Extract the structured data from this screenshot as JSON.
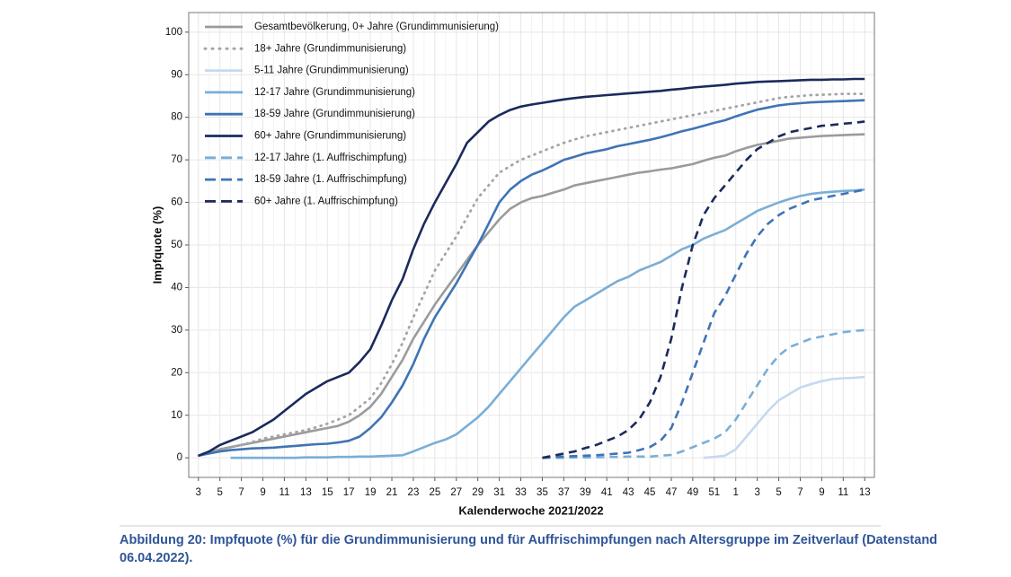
{
  "chart_data": {
    "type": "line",
    "x_label": "Kalenderwoche 2021/2022",
    "y_label": "Impfquote (%)",
    "caption": "Abbildung 20: Impfquote (%) für die Grundimmunisierung und für Auffrischimpfungen nach Altersgruppe im Zeitverlauf (Datenstand 06.04.2022).",
    "categories": [
      "3",
      null,
      "5",
      null,
      "7",
      null,
      "9",
      null,
      "11",
      null,
      "13",
      null,
      "15",
      null,
      "17",
      null,
      "19",
      null,
      "21",
      null,
      "23",
      null,
      "25",
      null,
      "27",
      null,
      "29",
      null,
      "31",
      null,
      "33",
      null,
      "35",
      null,
      "37",
      null,
      "39",
      null,
      "41",
      null,
      "43",
      null,
      "45",
      null,
      "47",
      null,
      "49",
      null,
      "51",
      null,
      "1",
      null,
      "3",
      null,
      "5",
      null,
      "7",
      null,
      "9",
      null,
      "11",
      null,
      "13"
    ],
    "ylim": [
      -4.6,
      104.6
    ],
    "yticks": [
      0,
      10,
      20,
      30,
      40,
      50,
      60,
      70,
      80,
      90,
      100
    ],
    "grid": true,
    "legend": "top-left",
    "series": [
      {
        "name": "Gesamtbevölkerung, 0+ Jahre (Grundimmunisierung)",
        "color": "#9b9b9b",
        "dash": "solid",
        "values": [
          0.5,
          1.2,
          2,
          2.5,
          3,
          3.5,
          4,
          4.5,
          5,
          5.5,
          6,
          6.5,
          7,
          7.5,
          8.5,
          10,
          12,
          15,
          19,
          23,
          28,
          32,
          36,
          39.5,
          43,
          46.5,
          50,
          53,
          56,
          58.5,
          60,
          61,
          61.5,
          62.3,
          63,
          64,
          64.5,
          65,
          65.5,
          66,
          66.5,
          67,
          67.3,
          67.7,
          68,
          68.5,
          69,
          69.8,
          70.5,
          71,
          72,
          72.8,
          73.5,
          74,
          74.5,
          75,
          75.2,
          75.4,
          75.6,
          75.7,
          75.8,
          75.9,
          76
        ]
      },
      {
        "name": "18+ Jahre (Grundimmunisierung)",
        "color": "#a5a5a5",
        "dash": "dot",
        "values": [
          0.5,
          1.2,
          2,
          2.5,
          3,
          3.7,
          4.5,
          5,
          5.5,
          6,
          6.5,
          7.2,
          8,
          9,
          10,
          12,
          14,
          17.5,
          22,
          27,
          33,
          38.5,
          44,
          48,
          52,
          56.5,
          61,
          64,
          67,
          68.5,
          70,
          71,
          72,
          73,
          74,
          74.8,
          75.5,
          76,
          76.5,
          77,
          77.5,
          78,
          78.5,
          79,
          79.5,
          80,
          80.5,
          81,
          81.5,
          82,
          82.5,
          83,
          83.5,
          84,
          84.5,
          84.8,
          85,
          85.2,
          85.3,
          85.4,
          85.5,
          85.5,
          85.5
        ]
      },
      {
        "name": "5-11 Jahre (Grundimmunisierung)",
        "color": "#c6d9ef",
        "dash": "solid",
        "values": [
          null,
          null,
          null,
          null,
          null,
          null,
          null,
          null,
          null,
          null,
          null,
          null,
          null,
          null,
          null,
          null,
          null,
          null,
          null,
          null,
          null,
          null,
          null,
          null,
          null,
          null,
          null,
          null,
          null,
          null,
          null,
          null,
          null,
          null,
          null,
          null,
          null,
          null,
          null,
          null,
          null,
          null,
          null,
          null,
          null,
          null,
          null,
          0,
          0.2,
          0.5,
          2,
          5,
          8,
          11,
          13.5,
          15,
          16.5,
          17.3,
          18,
          18.5,
          18.7,
          18.8,
          19
        ]
      },
      {
        "name": "12-17 Jahre (Grundimmunisierung)",
        "color": "#7aaed6",
        "dash": "solid",
        "values": [
          null,
          null,
          null,
          0,
          0,
          0,
          0,
          0,
          0,
          0,
          0.1,
          0.1,
          0.1,
          0.2,
          0.2,
          0.3,
          0.3,
          0.4,
          0.5,
          0.6,
          1.5,
          2.5,
          3.5,
          4.3,
          5.5,
          7.5,
          9.5,
          12,
          15,
          18,
          21,
          24,
          27,
          30,
          33,
          35.5,
          37,
          38.5,
          40,
          41.5,
          42.5,
          44,
          45,
          46,
          47.5,
          49,
          50,
          51.5,
          52.5,
          53.5,
          55,
          56.5,
          58,
          59,
          60,
          60.8,
          61.5,
          62,
          62.3,
          62.5,
          62.7,
          62.8,
          63
        ]
      },
      {
        "name": "18-59 Jahre (Grundimmunisierung)",
        "color": "#3f74b5",
        "dash": "solid",
        "values": [
          0.5,
          1,
          1.5,
          1.8,
          2,
          2.2,
          2.3,
          2.4,
          2.6,
          2.8,
          3,
          3.2,
          3.3,
          3.6,
          4,
          5,
          7,
          9.5,
          13,
          17,
          22,
          28,
          33,
          37,
          41,
          45.5,
          50,
          55,
          60,
          63,
          65,
          66.5,
          67.5,
          68.7,
          70,
          70.7,
          71.5,
          72,
          72.5,
          73.2,
          73.7,
          74.2,
          74.7,
          75.3,
          76,
          76.7,
          77.3,
          78,
          78.7,
          79.3,
          80.2,
          81,
          81.8,
          82.3,
          82.8,
          83.1,
          83.3,
          83.5,
          83.6,
          83.7,
          83.8,
          83.9,
          84
        ]
      },
      {
        "name": "60+ Jahre (Grundimmunisierung)",
        "color": "#1b2a5c",
        "dash": "solid",
        "values": [
          0.5,
          1.5,
          3,
          4,
          5,
          6,
          7.5,
          9,
          11,
          13,
          15,
          16.5,
          18,
          19,
          20,
          22.5,
          25.5,
          31,
          37,
          42,
          49,
          55,
          60,
          64.5,
          69,
          74,
          76.5,
          79,
          80.5,
          81.7,
          82.5,
          83,
          83.4,
          83.8,
          84.2,
          84.5,
          84.8,
          85,
          85.2,
          85.4,
          85.6,
          85.8,
          86,
          86.2,
          86.5,
          86.7,
          87,
          87.2,
          87.4,
          87.6,
          87.9,
          88.1,
          88.3,
          88.4,
          88.5,
          88.6,
          88.7,
          88.8,
          88.8,
          88.9,
          88.9,
          89,
          89
        ]
      },
      {
        "name": "12-17 Jahre (1. Auffrischimpfung)",
        "color": "#7aaed6",
        "dash": "dash",
        "values": [
          null,
          null,
          null,
          null,
          null,
          null,
          null,
          null,
          null,
          null,
          null,
          null,
          null,
          null,
          null,
          null,
          null,
          null,
          null,
          null,
          null,
          null,
          null,
          null,
          null,
          null,
          null,
          null,
          null,
          null,
          null,
          null,
          0,
          0,
          0,
          0.1,
          0.1,
          0.1,
          0.2,
          0.2,
          0.3,
          0.3,
          0.3,
          0.5,
          0.7,
          1.5,
          2.5,
          3.5,
          4.5,
          6,
          9,
          13,
          17,
          21,
          24,
          26,
          27,
          28,
          28.5,
          29,
          29.5,
          29.8,
          30
        ]
      },
      {
        "name": "18-59 Jahre (1. Auffrischimpfung)",
        "color": "#3f74b5",
        "dash": "dash",
        "values": [
          null,
          null,
          null,
          null,
          null,
          null,
          null,
          null,
          null,
          null,
          null,
          null,
          null,
          null,
          null,
          null,
          null,
          null,
          null,
          null,
          null,
          null,
          null,
          null,
          null,
          null,
          null,
          null,
          null,
          null,
          null,
          null,
          0,
          0.2,
          0.3,
          0.4,
          0.5,
          0.6,
          0.8,
          1,
          1.2,
          1.8,
          2.5,
          4,
          7,
          13,
          20,
          27,
          34,
          38,
          43,
          48,
          52,
          55,
          57,
          58.5,
          59.5,
          60.5,
          61,
          61.5,
          62,
          62.5,
          63
        ]
      },
      {
        "name": "60+ Jahre (1. Auffrischimpfung)",
        "color": "#1b2a5c",
        "dash": "dash",
        "values": [
          null,
          null,
          null,
          null,
          null,
          null,
          null,
          null,
          null,
          null,
          null,
          null,
          null,
          null,
          null,
          null,
          null,
          null,
          null,
          null,
          null,
          null,
          null,
          null,
          null,
          null,
          null,
          null,
          null,
          null,
          null,
          null,
          0,
          0.5,
          1,
          1.5,
          2.3,
          3,
          4,
          5,
          6.5,
          9,
          13,
          19,
          28,
          40,
          50,
          57,
          61,
          64,
          67,
          70,
          72.5,
          74,
          75.5,
          76.5,
          77,
          77.5,
          78,
          78.2,
          78.5,
          78.7,
          79
        ]
      }
    ]
  }
}
